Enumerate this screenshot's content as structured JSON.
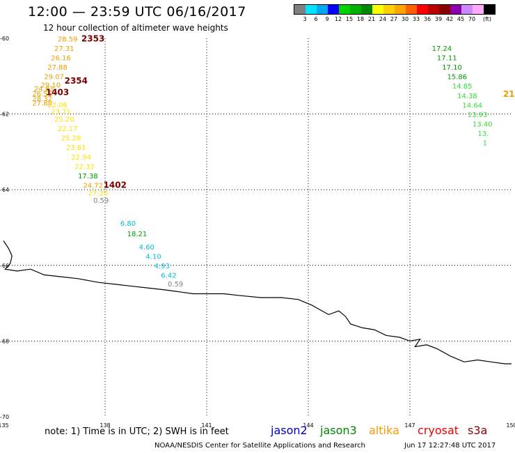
{
  "title": "12:00 — 23:59 UTC 06/16/2017",
  "subtitle": "12 hour collection of altimeter wave heights",
  "legend": {
    "colors": [
      "#7f7f7f",
      "#00e5ff",
      "#00a8f0",
      "#0000ff",
      "#00d000",
      "#00b000",
      "#008800",
      "#ffff00",
      "#ffd000",
      "#ffa500",
      "#ff6000",
      "#ff0000",
      "#bb0000",
      "#880000",
      "#8800aa",
      "#cc88ff",
      "#ffaaff",
      "#000000"
    ],
    "ticks": [
      "3",
      "6",
      "9",
      "12",
      "15",
      "18",
      "21",
      "24",
      "27",
      "30",
      "33",
      "36",
      "39",
      "42",
      "45",
      "70"
    ],
    "unit": "(ft)"
  },
  "map": {
    "lat_labels": [
      "-60",
      "-62",
      "-64",
      "-66",
      "-68",
      "-70"
    ],
    "lon_labels": [
      "135",
      "138",
      "141",
      "144",
      "147",
      "150"
    ],
    "coastline": [
      [
        135.0,
        65.35
      ],
      [
        135.15,
        65.55
      ],
      [
        135.25,
        65.75
      ],
      [
        135.2,
        65.95
      ],
      [
        135.05,
        66.1
      ],
      [
        135.4,
        66.15
      ],
      [
        135.8,
        66.1
      ],
      [
        136.2,
        66.25
      ],
      [
        136.7,
        66.3
      ],
      [
        137.2,
        66.35
      ],
      [
        137.8,
        66.45
      ],
      [
        138.3,
        66.5
      ],
      [
        138.8,
        66.55
      ],
      [
        139.3,
        66.6
      ],
      [
        139.8,
        66.65
      ],
      [
        140.2,
        66.7
      ],
      [
        140.6,
        66.75
      ],
      [
        141.0,
        66.75
      ],
      [
        141.5,
        66.75
      ],
      [
        142.0,
        66.8
      ],
      [
        142.6,
        66.85
      ],
      [
        143.2,
        66.85
      ],
      [
        143.7,
        66.9
      ],
      [
        144.1,
        67.05
      ],
      [
        144.4,
        67.2
      ],
      [
        144.6,
        67.3
      ],
      [
        144.9,
        67.2
      ],
      [
        145.1,
        67.35
      ],
      [
        145.25,
        67.55
      ],
      [
        145.6,
        67.65
      ],
      [
        145.95,
        67.7
      ],
      [
        146.3,
        67.85
      ],
      [
        146.7,
        67.9
      ],
      [
        147.0,
        68.0
      ],
      [
        147.3,
        67.95
      ],
      [
        147.15,
        68.15
      ],
      [
        147.5,
        68.1
      ],
      [
        147.8,
        68.2
      ],
      [
        148.2,
        68.4
      ],
      [
        148.6,
        68.55
      ],
      [
        149.0,
        68.5
      ],
      [
        149.4,
        68.55
      ],
      [
        149.8,
        68.6
      ],
      [
        150.0,
        68.6
      ]
    ],
    "points": [
      {
        "lon": 136.6,
        "lat": 60.08,
        "text": "28.59",
        "color": "#e8a000"
      },
      {
        "lon": 136.5,
        "lat": 60.33,
        "text": "27.31",
        "color": "#e8a000"
      },
      {
        "lon": 136.4,
        "lat": 60.58,
        "text": "26.16",
        "color": "#e8a000"
      },
      {
        "lon": 136.3,
        "lat": 60.83,
        "text": "27.88",
        "color": "#e8a000"
      },
      {
        "lon": 136.2,
        "lat": 61.08,
        "text": "29.07",
        "color": "#e8a000"
      },
      {
        "lon": 136.1,
        "lat": 61.3,
        "text": "29.10",
        "color": "#e8a000"
      },
      {
        "lon": 135.9,
        "lat": 61.4,
        "text": "24.83",
        "color": "#e8a000"
      },
      {
        "lon": 135.85,
        "lat": 61.53,
        "text": "26.56",
        "color": "#e8a000"
      },
      {
        "lon": 135.85,
        "lat": 61.66,
        "text": "28.32",
        "color": "#e8a000"
      },
      {
        "lon": 135.85,
        "lat": 61.78,
        "text": "27.88",
        "color": "#e8a000"
      },
      {
        "lon": 136.3,
        "lat": 61.82,
        "text": "22.06",
        "color": "#ffe000"
      },
      {
        "lon": 136.4,
        "lat": 62.0,
        "text": "23.71",
        "color": "#ffe000"
      },
      {
        "lon": 136.5,
        "lat": 62.2,
        "text": "25.20",
        "color": "#ffe000"
      },
      {
        "lon": 136.6,
        "lat": 62.45,
        "text": "22.17",
        "color": "#ffe000"
      },
      {
        "lon": 136.7,
        "lat": 62.7,
        "text": "25.28",
        "color": "#ffe000"
      },
      {
        "lon": 136.85,
        "lat": 62.95,
        "text": "23.61",
        "color": "#ffe000"
      },
      {
        "lon": 137.0,
        "lat": 63.2,
        "text": "22.94",
        "color": "#ffe000"
      },
      {
        "lon": 137.1,
        "lat": 63.45,
        "text": "22.32",
        "color": "#ffe000"
      },
      {
        "lon": 137.2,
        "lat": 63.7,
        "text": "17.38",
        "color": "#009900"
      },
      {
        "lon": 137.35,
        "lat": 63.95,
        "text": "24.72",
        "color": "#e8a000"
      },
      {
        "lon": 137.5,
        "lat": 64.15,
        "text": "27.20",
        "color": "#ffe000"
      },
      {
        "lon": 137.65,
        "lat": 64.35,
        "text": "0.59",
        "color": "#808080"
      },
      {
        "lon": 138.45,
        "lat": 64.95,
        "text": "6.80",
        "color": "#00bcd4"
      },
      {
        "lon": 138.65,
        "lat": 65.23,
        "text": "18.21",
        "color": "#009900"
      },
      {
        "lon": 139.0,
        "lat": 65.58,
        "text": "4.60",
        "color": "#00bcd4"
      },
      {
        "lon": 139.2,
        "lat": 65.83,
        "text": "4.10",
        "color": "#00bcd4"
      },
      {
        "lon": 139.45,
        "lat": 66.08,
        "text": "4.93",
        "color": "#00bcd4"
      },
      {
        "lon": 139.65,
        "lat": 66.33,
        "text": "6.42",
        "color": "#00bcd4"
      },
      {
        "lon": 139.85,
        "lat": 66.56,
        "text": "0.59",
        "color": "#808080"
      },
      {
        "lon": 147.65,
        "lat": 60.33,
        "text": "17.24",
        "color": "#009900"
      },
      {
        "lon": 147.8,
        "lat": 60.58,
        "text": "17.11",
        "color": "#009900"
      },
      {
        "lon": 147.95,
        "lat": 60.83,
        "text": "17.10",
        "color": "#009900"
      },
      {
        "lon": 148.1,
        "lat": 61.08,
        "text": "15.86",
        "color": "#009900"
      },
      {
        "lon": 148.25,
        "lat": 61.33,
        "text": "14.85",
        "color": "#33dd33"
      },
      {
        "lon": 148.4,
        "lat": 61.58,
        "text": "14.38",
        "color": "#33dd33"
      },
      {
        "lon": 148.55,
        "lat": 61.83,
        "text": "14.64",
        "color": "#33dd33"
      },
      {
        "lon": 148.7,
        "lat": 62.08,
        "text": "13.93",
        "color": "#33dd33"
      },
      {
        "lon": 148.85,
        "lat": 62.33,
        "text": "13.40",
        "color": "#33dd33"
      },
      {
        "lon": 149.0,
        "lat": 62.58,
        "text": "13.",
        "color": "#33dd33"
      },
      {
        "lon": 149.15,
        "lat": 62.83,
        "text": "1",
        "color": "#33dd33"
      }
    ],
    "times": [
      {
        "lon": 137.3,
        "lat": 60.08,
        "text": "2353",
        "color": "#7a0000"
      },
      {
        "lon": 136.8,
        "lat": 61.2,
        "text": "2354",
        "color": "#7a0000"
      },
      {
        "lon": 136.25,
        "lat": 61.5,
        "text": "1403",
        "color": "#7a0000"
      },
      {
        "lon": 137.95,
        "lat": 63.95,
        "text": "1402",
        "color": "#7a0000"
      },
      {
        "lon": 149.75,
        "lat": 61.55,
        "text": "21",
        "color": "#e8a000"
      }
    ]
  },
  "footer": {
    "note": "note: 1) Time is in UTC; 2) SWH is in feet",
    "satellites": [
      {
        "name": "jason2",
        "color": "#0000cc"
      },
      {
        "name": "jason3",
        "color": "#008800"
      },
      {
        "name": "altika",
        "color": "#ff9900"
      },
      {
        "name": "cryosat",
        "color": "#ee0000"
      },
      {
        "name": "s3a",
        "color": "#880000"
      }
    ],
    "credit": "NOAA/NESDIS Center for Satellite Applications and Research",
    "timestamp": "Jun 17 12:27:48 UTC 2017"
  }
}
